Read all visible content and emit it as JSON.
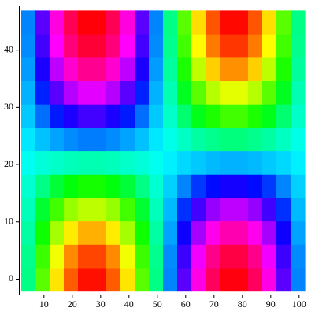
{
  "chart_data": {
    "type": "heatmap",
    "x": [
      4.5,
      9.5,
      14.5,
      19.5,
      24.5,
      29.5,
      34.5,
      39.5,
      44.5,
      49.5,
      54.5,
      59.5,
      64.5,
      69.5,
      74.5,
      79.5,
      84.5,
      89.5,
      94.5,
      99.5
    ],
    "y": [
      -0.04,
      4.04,
      8.13,
      12.21,
      16.29,
      20.38,
      24.46,
      28.54,
      32.63,
      36.71,
      40.79,
      44.88
    ],
    "z": [
      [
        0.16,
        0.45,
        0.7,
        0.88,
        0.98,
        0.98,
        0.88,
        0.7,
        0.45,
        0.16,
        -0.16,
        -0.45,
        -0.7,
        -0.88,
        -0.98,
        -0.98,
        -0.88,
        -0.7,
        -0.45,
        -0.16
      ],
      [
        0.15,
        0.41,
        0.65,
        0.82,
        0.91,
        0.91,
        0.82,
        0.65,
        0.41,
        0.15,
        -0.15,
        -0.41,
        -0.65,
        -0.82,
        -0.91,
        -0.91,
        -0.82,
        -0.65,
        -0.41,
        -0.15
      ],
      [
        0.12,
        0.35,
        0.55,
        0.69,
        0.77,
        0.77,
        0.69,
        0.55,
        0.35,
        0.12,
        -0.12,
        -0.35,
        -0.55,
        -0.69,
        -0.77,
        -0.77,
        -0.69,
        -0.55,
        -0.35,
        -0.12
      ],
      [
        0.09,
        0.27,
        0.42,
        0.53,
        0.58,
        0.58,
        0.53,
        0.42,
        0.27,
        0.09,
        -0.09,
        -0.27,
        -0.42,
        -0.53,
        -0.58,
        -0.58,
        -0.53,
        -0.42,
        -0.27,
        -0.09
      ],
      [
        0.06,
        0.16,
        0.26,
        0.32,
        0.36,
        0.36,
        0.32,
        0.26,
        0.16,
        0.06,
        -0.06,
        -0.16,
        -0.26,
        -0.32,
        -0.36,
        -0.36,
        -0.32,
        -0.26,
        -0.16,
        -0.06
      ],
      [
        0.02,
        0.05,
        0.07,
        0.09,
        0.1,
        0.1,
        0.09,
        0.07,
        0.05,
        0.02,
        -0.02,
        -0.05,
        -0.07,
        -0.09,
        -0.1,
        -0.1,
        -0.09,
        -0.07,
        -0.05,
        -0.02
      ],
      [
        -0.03,
        -0.08,
        -0.12,
        -0.15,
        -0.17,
        -0.17,
        -0.15,
        -0.12,
        -0.08,
        -0.03,
        0.03,
        0.08,
        0.12,
        0.15,
        0.17,
        0.17,
        0.15,
        0.12,
        0.08,
        0.03
      ],
      [
        -0.07,
        -0.19,
        -0.3,
        -0.37,
        -0.42,
        -0.42,
        -0.37,
        -0.3,
        -0.19,
        -0.07,
        0.07,
        0.19,
        0.3,
        0.37,
        0.42,
        0.42,
        0.37,
        0.3,
        0.19,
        0.07
      ],
      [
        -0.1,
        -0.29,
        -0.45,
        -0.57,
        -0.63,
        -0.63,
        -0.57,
        -0.45,
        -0.29,
        -0.1,
        0.1,
        0.29,
        0.45,
        0.57,
        0.63,
        0.63,
        0.57,
        0.45,
        0.29,
        0.1
      ],
      [
        -0.13,
        -0.37,
        -0.58,
        -0.73,
        -0.81,
        -0.81,
        -0.73,
        -0.58,
        -0.37,
        -0.13,
        0.13,
        0.37,
        0.58,
        0.73,
        0.81,
        0.81,
        0.73,
        0.58,
        0.37,
        0.13
      ],
      [
        -0.15,
        -0.42,
        -0.67,
        -0.84,
        -0.93,
        -0.93,
        -0.84,
        -0.67,
        -0.42,
        -0.15,
        0.15,
        0.42,
        0.67,
        0.84,
        0.93,
        0.93,
        0.84,
        0.67,
        0.42,
        0.15
      ],
      [
        -0.16,
        -0.45,
        -0.71,
        -0.89,
        -0.99,
        -0.99,
        -0.89,
        -0.71,
        -0.45,
        -0.16,
        0.16,
        0.45,
        0.71,
        0.89,
        0.99,
        0.99,
        0.89,
        0.71,
        0.45,
        0.16
      ]
    ],
    "zlim": [
      -1,
      1
    ],
    "xlim": [
      2,
      102
    ],
    "ylim": [
      -2,
      47
    ],
    "xticks": [
      10,
      20,
      30,
      40,
      50,
      60,
      70,
      80,
      90,
      100
    ],
    "yticks": [
      0,
      10,
      20,
      30,
      40
    ]
  }
}
